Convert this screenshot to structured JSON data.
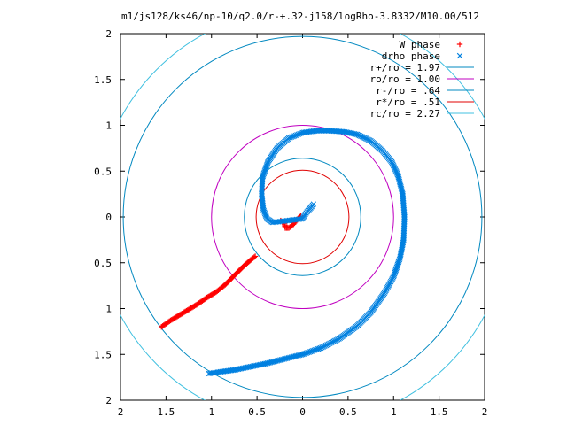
{
  "chart_data": {
    "type": "scatter",
    "title": "m1/js128/ks46/np-10/q2.0/r-+.32-j158/logRho-3.8332/M10.00/512",
    "xlabel": "",
    "ylabel": "",
    "xlim": [
      -2,
      2
    ],
    "ylim": [
      -2,
      2
    ],
    "x_ticks": [
      -2,
      -1.5,
      -1,
      -0.5,
      0,
      0.5,
      1,
      1.5,
      2
    ],
    "y_ticks": [
      -2,
      -1.5,
      -1,
      -0.5,
      0,
      0.5,
      1,
      1.5,
      2
    ],
    "x_tick_labels": [
      "2",
      "1.5",
      "1",
      "0.5",
      "0",
      "0.5",
      "1",
      "1.5",
      "2"
    ],
    "y_tick_labels": [
      "2",
      "1.5",
      "1",
      "0.5",
      "0",
      "0.5",
      "1",
      "1.5",
      "2"
    ],
    "grid": false,
    "legend_position": "top-right",
    "series": [
      {
        "name": "W phase",
        "kind": "points",
        "marker": "plus",
        "color": "#ff0000",
        "points": [
          [
            -1.55,
            -1.2
          ],
          [
            -1.45,
            -1.13
          ],
          [
            -1.35,
            -1.07
          ],
          [
            -1.25,
            -1.01
          ],
          [
            -1.15,
            -0.95
          ],
          [
            -1.05,
            -0.88
          ],
          [
            -0.95,
            -0.82
          ],
          [
            -0.85,
            -0.74
          ],
          [
            -0.75,
            -0.64
          ],
          [
            -0.65,
            -0.54
          ],
          [
            -0.57,
            -0.47
          ],
          [
            -0.52,
            -0.43
          ],
          [
            -0.24,
            -0.04
          ],
          [
            -0.2,
            -0.07
          ],
          [
            -0.19,
            -0.12
          ],
          [
            -0.15,
            -0.12
          ],
          [
            -0.1,
            -0.08
          ],
          [
            -0.06,
            -0.03
          ],
          [
            -0.02,
            0.01
          ]
        ]
      },
      {
        "name": "drho phase",
        "kind": "points",
        "marker": "cross",
        "color": "#0080e0",
        "points": [
          [
            -1.03,
            -1.71
          ],
          [
            -0.9,
            -1.69
          ],
          [
            -0.75,
            -1.67
          ],
          [
            -0.6,
            -1.64
          ],
          [
            -0.4,
            -1.6
          ],
          [
            -0.2,
            -1.55
          ],
          [
            0.0,
            -1.5
          ],
          [
            0.2,
            -1.43
          ],
          [
            0.4,
            -1.33
          ],
          [
            0.6,
            -1.19
          ],
          [
            0.75,
            -1.04
          ],
          [
            0.9,
            -0.83
          ],
          [
            1.0,
            -0.65
          ],
          [
            1.07,
            -0.45
          ],
          [
            1.11,
            -0.25
          ],
          [
            1.12,
            0.0
          ],
          [
            1.1,
            0.25
          ],
          [
            1.05,
            0.45
          ],
          [
            0.98,
            0.6
          ],
          [
            0.88,
            0.72
          ],
          [
            0.75,
            0.83
          ],
          [
            0.6,
            0.9
          ],
          [
            0.45,
            0.93
          ],
          [
            0.3,
            0.94
          ],
          [
            0.15,
            0.94
          ],
          [
            0.0,
            0.92
          ],
          [
            -0.15,
            0.86
          ],
          [
            -0.28,
            0.75
          ],
          [
            -0.38,
            0.6
          ],
          [
            -0.44,
            0.43
          ],
          [
            -0.45,
            0.25
          ],
          [
            -0.43,
            0.08
          ],
          [
            -0.39,
            -0.02
          ],
          [
            -0.33,
            -0.06
          ],
          [
            0.0,
            -0.02
          ],
          [
            0.03,
            0.03
          ],
          [
            0.06,
            0.07
          ],
          [
            0.09,
            0.1
          ],
          [
            0.12,
            0.14
          ]
        ]
      },
      {
        "name": "r+/ro = 1.97",
        "kind": "circle",
        "radius": 1.97,
        "color": "#0088c0"
      },
      {
        "name": "ro/ro = 1.00",
        "kind": "circle",
        "radius": 1.0,
        "color": "#c000c0"
      },
      {
        "name": "r-/ro = .64",
        "kind": "circle",
        "radius": 0.64,
        "color": "#0088c0"
      },
      {
        "name": "r*/ro = .51",
        "kind": "circle",
        "radius": 0.51,
        "color": "#e00000"
      },
      {
        "name": "rc/ro = 2.27",
        "kind": "circle",
        "radius": 2.27,
        "color": "#40c0e0"
      }
    ]
  }
}
